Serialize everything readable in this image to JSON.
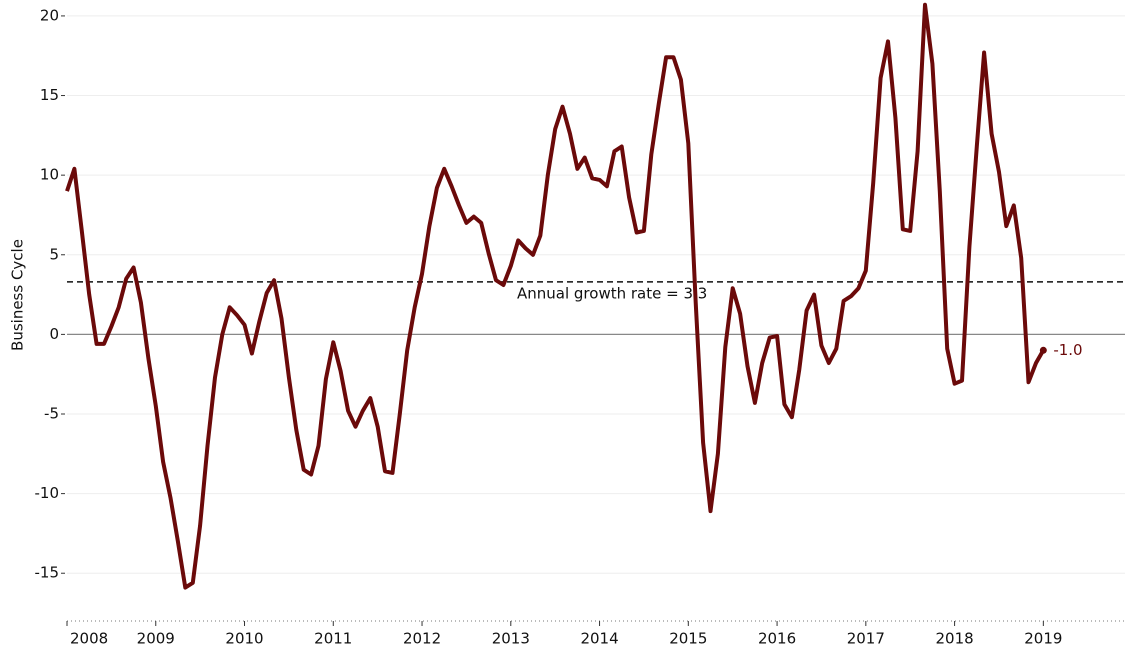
{
  "chart_data": {
    "type": "line",
    "y_label": "Business Cycle",
    "x": [
      2008,
      2008.083,
      2008.167,
      2008.25,
      2008.333,
      2008.417,
      2008.5,
      2008.583,
      2008.667,
      2008.75,
      2008.833,
      2008.917,
      2009,
      2009.083,
      2009.167,
      2009.25,
      2009.333,
      2009.417,
      2009.5,
      2009.583,
      2009.667,
      2009.75,
      2009.833,
      2009.917,
      2010,
      2010.083,
      2010.167,
      2010.25,
      2010.333,
      2010.417,
      2010.5,
      2010.583,
      2010.667,
      2010.75,
      2010.833,
      2010.917,
      2011,
      2011.083,
      2011.167,
      2011.25,
      2011.333,
      2011.417,
      2011.5,
      2011.583,
      2011.667,
      2011.75,
      2011.833,
      2011.917,
      2012,
      2012.083,
      2012.167,
      2012.25,
      2012.333,
      2012.417,
      2012.5,
      2012.583,
      2012.667,
      2012.75,
      2012.833,
      2012.917,
      2013,
      2013.083,
      2013.167,
      2013.25,
      2013.333,
      2013.417,
      2013.5,
      2013.583,
      2013.667,
      2013.75,
      2013.833,
      2013.917,
      2014,
      2014.083,
      2014.167,
      2014.25,
      2014.333,
      2014.417,
      2014.5,
      2014.583,
      2014.667,
      2014.75,
      2014.833,
      2014.917,
      2015,
      2015.083,
      2015.167,
      2015.25,
      2015.333,
      2015.417,
      2015.5,
      2015.583,
      2015.667,
      2015.75,
      2015.833,
      2015.917,
      2016,
      2016.083,
      2016.167,
      2016.25,
      2016.333,
      2016.417,
      2016.5,
      2016.583,
      2016.667,
      2016.75,
      2016.833,
      2016.917,
      2017,
      2017.083,
      2017.167,
      2017.25,
      2017.333,
      2017.417,
      2017.5,
      2017.583,
      2017.667,
      2017.75,
      2017.833,
      2017.917,
      2018,
      2018.083,
      2018.167,
      2018.25,
      2018.333,
      2018.417,
      2018.5,
      2018.583,
      2018.667,
      2018.75,
      2018.833,
      2018.917,
      2019
    ],
    "series": [
      {
        "color": "#6b0a0a",
        "values": [
          9,
          10.4,
          6.5,
          2.5,
          -0.6,
          -0.6,
          0.5,
          1.7,
          3.5,
          4.2,
          2.0,
          -1.5,
          -4.5,
          -8,
          -10.3,
          -13,
          -15.9,
          -15.6,
          -12,
          -7,
          -2.7,
          0,
          1.7,
          1.2,
          0.6,
          -1.2,
          0.8,
          2.6,
          3.4,
          1.0,
          -2.7,
          -6,
          -8.5,
          -8.8,
          -7,
          -2.8,
          -0.5,
          -2.3,
          -4.8,
          -5.8,
          -4.8,
          -4.0,
          -5.8,
          -8.6,
          -8.7,
          -5,
          -1,
          1.7,
          3.8,
          6.8,
          9.2,
          10.4,
          9.3,
          8.1,
          7.0,
          7.4,
          7.0,
          5.1,
          3.4,
          3.1,
          4.3,
          5.9,
          5.4,
          5.0,
          6.2,
          10,
          12.9,
          14.3,
          12.6,
          10.4,
          11.1,
          9.8,
          9.7,
          9.3,
          11.5,
          11.8,
          8.6,
          6.4,
          6.5,
          11.3,
          14.5,
          17.4,
          17.4,
          16,
          12,
          2,
          -6.8,
          -11.1,
          -7.5,
          -0.8,
          2.9,
          1.3,
          -2,
          -4.3,
          -1.8,
          -0.2,
          -0.1,
          -4.4,
          -5.2,
          -2.2,
          1.5,
          2.5,
          -0.7,
          -1.8,
          -0.9,
          2.1,
          2.4,
          2.9,
          4.0,
          9.5,
          16.1,
          18.4,
          13.6,
          6.6,
          6.5,
          11.5,
          20.7,
          17,
          9,
          -0.9,
          -3.1,
          -2.9,
          5.5,
          11.8,
          17.7,
          12.6,
          10.2,
          6.8,
          8.1,
          4.8,
          -3.0,
          -1.8,
          -1.0
        ]
      }
    ],
    "end_label": "-1.0",
    "reference_line": {
      "value": 3.3,
      "label": "Annual growth rate = 3.3"
    },
    "xlim": [
      2008,
      2019.92
    ],
    "xticks": [
      2008,
      2009,
      2010,
      2011,
      2012,
      2013,
      2014,
      2015,
      2016,
      2017,
      2018,
      2019
    ],
    "ylim": [
      -18,
      21
    ],
    "yticks": [
      -15,
      -10,
      -5,
      0,
      5,
      10,
      15,
      20
    ],
    "grid": true
  }
}
